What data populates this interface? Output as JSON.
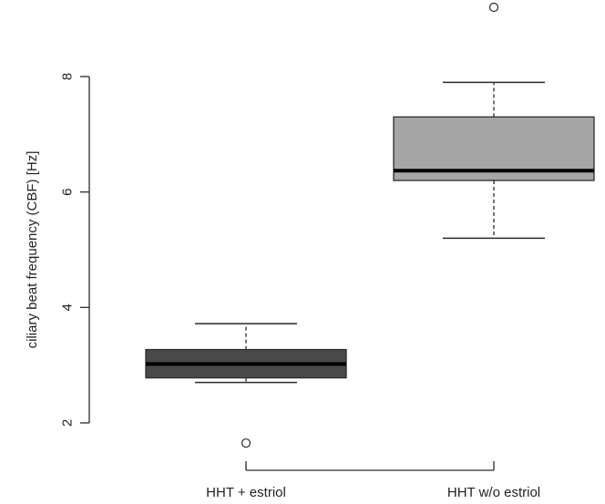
{
  "chart_data": {
    "type": "boxplot",
    "title": "",
    "xlabel": "",
    "ylabel": "ciliary beat frequency (CBF) [Hz]",
    "ylim": [
      1.6,
      9.2
    ],
    "yticks": [
      2,
      4,
      6,
      8
    ],
    "ytick_labels": [
      "2",
      "4",
      "6",
      "8"
    ],
    "grid": false,
    "categories": [
      "HHT + estriol",
      "HHT w/o estriol"
    ],
    "series": [
      {
        "category": "HHT + estriol",
        "min": 2.7,
        "q1": 2.78,
        "median": 3.02,
        "q3": 3.27,
        "max": 3.72,
        "outliers": [
          1.65
        ],
        "fill_color": "#4a4a4a"
      },
      {
        "category": "HHT w/o estriol",
        "min": 5.2,
        "q1": 6.2,
        "median": 6.37,
        "q3": 7.3,
        "max": 7.9,
        "outliers": [
          9.2
        ],
        "fill_color": "#a6a6a6"
      }
    ]
  }
}
